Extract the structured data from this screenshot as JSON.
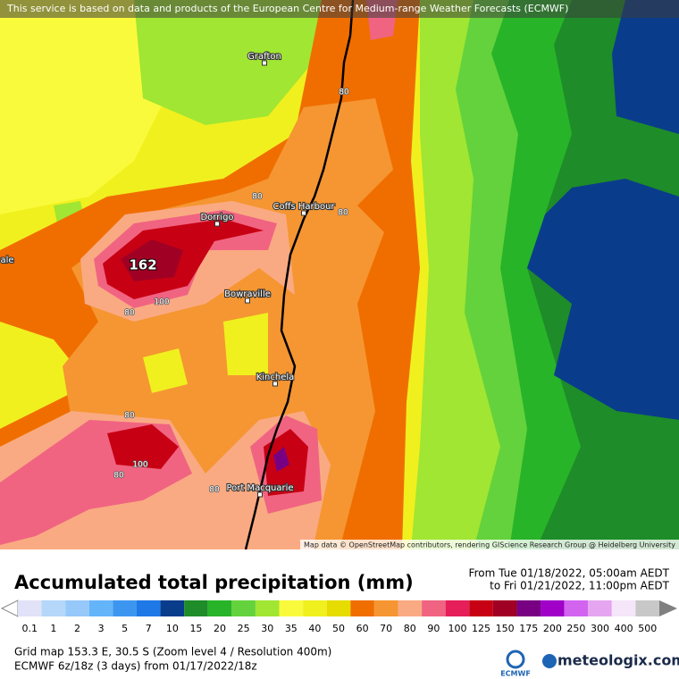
{
  "notice": "This service is based on data and products of the European Centre for Medium-range Weather Forecasts (ECMWF)",
  "map": {
    "places": [
      "Grafton",
      "Coffs Harbour",
      "Dorrigo",
      "Bowraville",
      "Kinchela",
      "Port Macquarie",
      "ale"
    ],
    "contour_labels": [
      "80",
      "80",
      "80",
      "100",
      "80",
      "80",
      "100",
      "80",
      "80"
    ],
    "max_label": "162",
    "attribution": "Map data © OpenStreetMap contributors, rendering GIScience Research Group @ Heidelberg University"
  },
  "legend": {
    "title": "Accumulated total precipitation (mm)",
    "from": "From Tue 01/18/2022, 05:00am AEDT",
    "to": "to Fri 01/21/2022, 11:00pm AEDT",
    "items": [
      {
        "label": "0.1",
        "color": "#e1e1f8"
      },
      {
        "label": "1",
        "color": "#b4d7fa"
      },
      {
        "label": "2",
        "color": "#96c8fa"
      },
      {
        "label": "3",
        "color": "#64b4fa"
      },
      {
        "label": "5",
        "color": "#3c96f0"
      },
      {
        "label": "7",
        "color": "#1e78e6"
      },
      {
        "label": "10",
        "color": "#0a3c8c"
      },
      {
        "label": "15",
        "color": "#1e8c28"
      },
      {
        "label": "20",
        "color": "#28b428"
      },
      {
        "label": "25",
        "color": "#64d23c"
      },
      {
        "label": "30",
        "color": "#a0e632"
      },
      {
        "label": "35",
        "color": "#fafa3c"
      },
      {
        "label": "40",
        "color": "#f0f01e"
      },
      {
        "label": "50",
        "color": "#e6dc00"
      },
      {
        "label": "60",
        "color": "#f06e00"
      },
      {
        "label": "70",
        "color": "#f59632"
      },
      {
        "label": "80",
        "color": "#faaa82"
      },
      {
        "label": "90",
        "color": "#f06482"
      },
      {
        "label": "100",
        "color": "#e61e5a"
      },
      {
        "label": "125",
        "color": "#c80014"
      },
      {
        "label": "150",
        "color": "#a00023"
      },
      {
        "label": "175",
        "color": "#780082"
      },
      {
        "label": "200",
        "color": "#a000c8"
      },
      {
        "label": "250",
        "color": "#d264f0"
      },
      {
        "label": "300",
        "color": "#e6a5f0"
      },
      {
        "label": "400",
        "color": "#f5e6fa"
      },
      {
        "label": "500",
        "color": "#c8c8c8"
      }
    ]
  },
  "footer": {
    "grid": "Grid map 153.3 E, 30.5 S (Zoom level 4 / Resolution 400m)",
    "model": "ECMWF 6z/18z (3 days) from 01/17/2022/18z",
    "ecmwf": "ECMWF",
    "brand": "meteologix.com"
  }
}
